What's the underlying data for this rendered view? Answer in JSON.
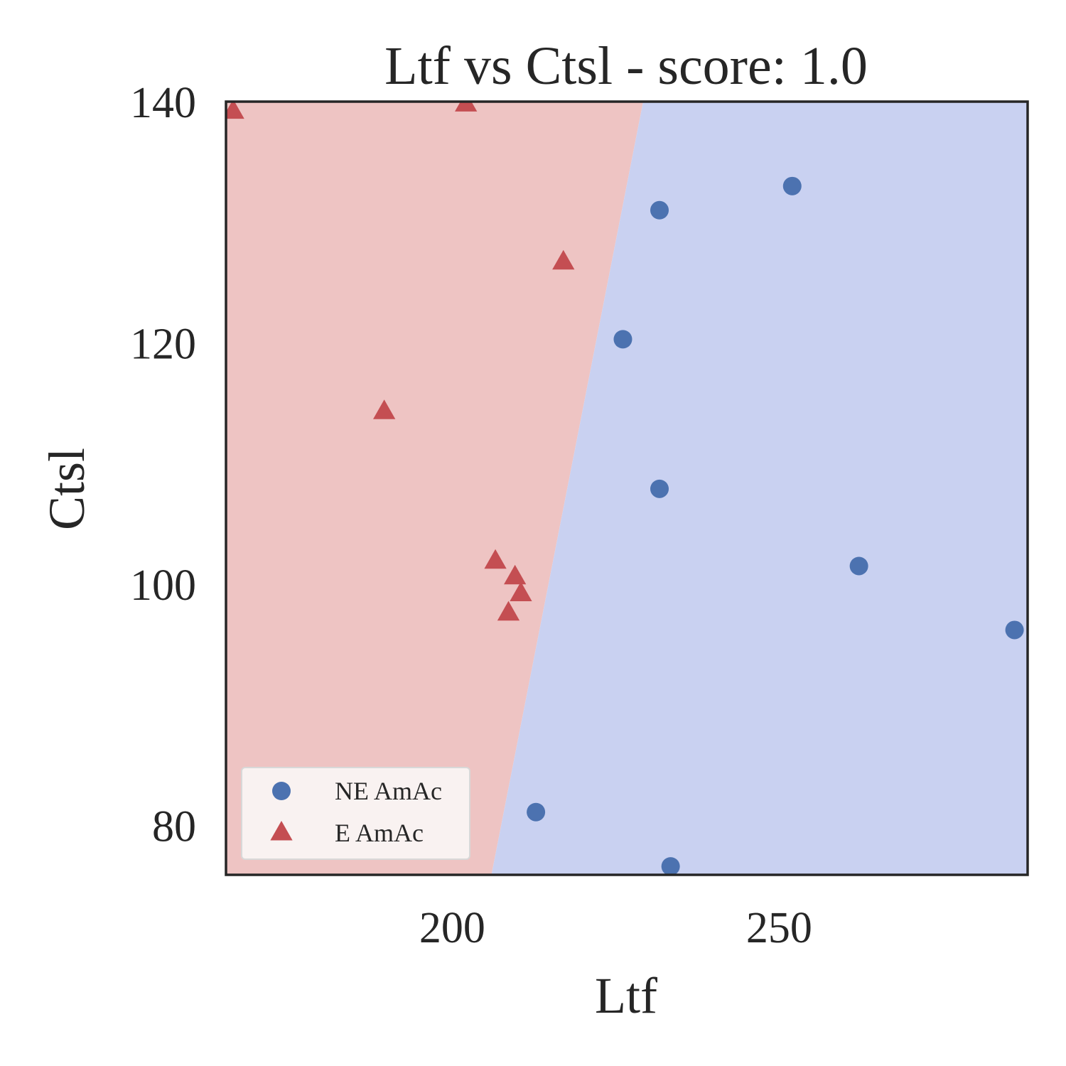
{
  "chart_data": {
    "type": "scatter",
    "title": "Ltf vs Ctsl - score: 1.0",
    "xlabel": "Ltf",
    "ylabel": "Ctsl",
    "xlim": [
      165.4,
      288.0
    ],
    "ylim": [
      75.9,
      140.0
    ],
    "xticks": [
      200,
      250
    ],
    "yticks": [
      80,
      100,
      120,
      140
    ],
    "grid": false,
    "legend_position": "lower left",
    "decision_boundary": {
      "line": [
        [
          206.0,
          75.9
        ],
        [
          229.2,
          140.0
        ]
      ],
      "left_class": "E AmAc",
      "right_class": "NE AmAc",
      "colors": {
        "left": "#eec4c3",
        "right": "#c9d1f1"
      }
    },
    "series": [
      {
        "name": "NE AmAc",
        "marker": "circle",
        "color": "#4c72b0",
        "points": [
          {
            "x": 252.0,
            "y": 133.0
          },
          {
            "x": 231.7,
            "y": 131.0
          },
          {
            "x": 226.1,
            "y": 120.3
          },
          {
            "x": 231.7,
            "y": 107.9
          },
          {
            "x": 262.2,
            "y": 101.5
          },
          {
            "x": 286.0,
            "y": 96.2
          },
          {
            "x": 212.8,
            "y": 81.1
          },
          {
            "x": 233.4,
            "y": 76.6
          }
        ]
      },
      {
        "name": "E AmAc",
        "marker": "triangle",
        "color": "#c44e52",
        "points": [
          {
            "x": 166.5,
            "y": 139.2
          },
          {
            "x": 202.1,
            "y": 139.8
          },
          {
            "x": 217.0,
            "y": 126.7
          },
          {
            "x": 189.6,
            "y": 114.3
          },
          {
            "x": 206.6,
            "y": 101.9
          },
          {
            "x": 209.6,
            "y": 100.6
          },
          {
            "x": 210.5,
            "y": 99.2
          },
          {
            "x": 208.6,
            "y": 97.6
          }
        ]
      }
    ]
  }
}
